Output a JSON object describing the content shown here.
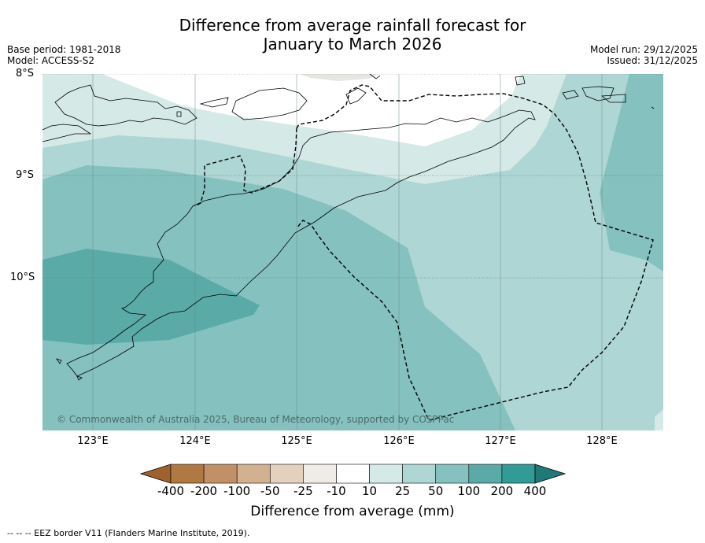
{
  "title_line1": "Difference from average rainfall forecast for",
  "title_line2": "January to March 2026",
  "meta_left": {
    "base_period": "Base period: 1981-2018",
    "model": "Model: ACCESS-S2"
  },
  "meta_right": {
    "model_run": "Model run: 29/12/2025",
    "issued": "Issued: 31/12/2025"
  },
  "latitudes": [
    "8°S",
    "9°S",
    "10°S"
  ],
  "longitudes": [
    "123°E",
    "124°E",
    "125°E",
    "126°E",
    "127°E",
    "128°E"
  ],
  "copyright": "© Commonwealth of Australia 2025, Bureau of Meteorology, supported by COSPPac",
  "colorbar": {
    "labels": [
      "-400",
      "-200",
      "-100",
      "-50",
      "-25",
      "-10",
      "10",
      "25",
      "50",
      "100",
      "200",
      "400"
    ],
    "colors": [
      "#a0622d",
      "#b07942",
      "#c29065",
      "#d2b190",
      "#e3d0bd",
      "#efebe6",
      "#ffffff",
      "#d5e9e7",
      "#aed6d4",
      "#84c1bf",
      "#5aaaa8",
      "#319b97",
      "#1f7a77"
    ],
    "title": "Difference from average (mm)"
  },
  "legend_note": "--  --  -- EEZ border V11 (Flanders Marine Institute, 2019).",
  "map_colors": {
    "c10": "#d5e9e7",
    "c25": "#aed6d4",
    "c50": "#84c1bf",
    "c100": "#5aaaa8"
  }
}
